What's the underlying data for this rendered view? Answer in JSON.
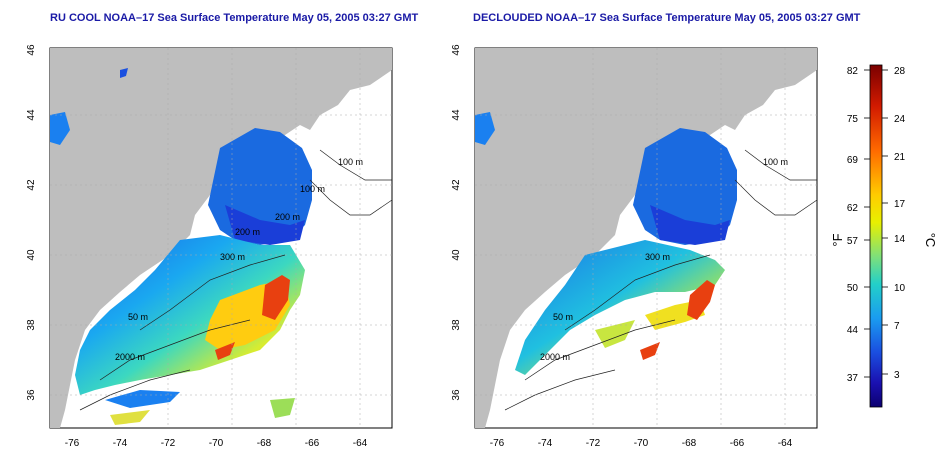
{
  "panels": [
    {
      "title": "RU COOL NOAA–17 Sea Surface Temperature May 05, 2005 03:27 GMT",
      "x_ticks": [
        "-76",
        "-74",
        "-72",
        "-70",
        "-68",
        "-66",
        "-64"
      ],
      "y_ticks": [
        "36",
        "38",
        "40",
        "42",
        "44",
        "46"
      ],
      "contour_labels": [
        "100 m",
        "100 m",
        "200 m",
        "300 m",
        "50 m",
        "2000 m",
        "200 m"
      ]
    },
    {
      "title": "DECLOUDED NOAA–17 Sea Surface Temperature May 05, 2005 03:27 GMT",
      "x_ticks": [
        "-76",
        "-74",
        "-72",
        "-70",
        "-68",
        "-66",
        "-64"
      ],
      "y_ticks": [
        "36",
        "38",
        "40",
        "42",
        "44",
        "46"
      ],
      "contour_labels": [
        "100 m",
        "300 m",
        "50 m",
        "2000 m"
      ]
    }
  ],
  "colorbar": {
    "f_ticks": [
      "82",
      "75",
      "69",
      "62",
      "57",
      "50",
      "44",
      "37"
    ],
    "c_ticks": [
      "28",
      "24",
      "21",
      "17",
      "14",
      "10",
      "7",
      "3"
    ],
    "f_label": "°F",
    "c_label": "°C",
    "colors": [
      "#7a0000",
      "#d11a00",
      "#ff6a00",
      "#ffcc00",
      "#e8f000",
      "#7ee07a",
      "#23d0c8",
      "#1a9cf0",
      "#1a4ee0",
      "#1a10b0",
      "#0c0070"
    ]
  },
  "land_color": "#bebebe"
}
